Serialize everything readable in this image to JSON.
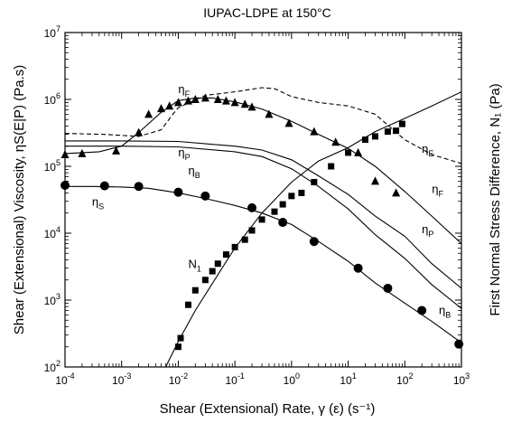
{
  "chart_data": {
    "type": "line",
    "title": "IUPAC-LDPE at 150°C",
    "xlabel": "Shear (Extensional) Rate, γ (ε) (s⁻¹)",
    "ylabel_left": "Shear (Extensional) Viscosity, ηS(E|P) (Pa.s)",
    "ylabel_right": "First Normal Stress Difference, N₁ (Pa)",
    "x_scale": "log",
    "y_scale": "log",
    "xlim": [
      0.0001,
      1000
    ],
    "ylim": [
      100,
      10000000
    ],
    "grid": false,
    "x_ticks": [
      {
        "value": 0.0001,
        "base": "10",
        "exp": "-4"
      },
      {
        "value": 0.001,
        "base": "10",
        "exp": "-3"
      },
      {
        "value": 0.01,
        "base": "10",
        "exp": "-2"
      },
      {
        "value": 0.1,
        "base": "10",
        "exp": "-1"
      },
      {
        "value": 1,
        "base": "10",
        "exp": "0"
      },
      {
        "value": 10,
        "base": "10",
        "exp": "1"
      },
      {
        "value": 100,
        "base": "10",
        "exp": "2"
      },
      {
        "value": 1000,
        "base": "10",
        "exp": "3"
      }
    ],
    "y_ticks": [
      {
        "value": 100,
        "base": "10",
        "exp": "2"
      },
      {
        "value": 1000,
        "base": "10",
        "exp": "3"
      },
      {
        "value": 10000,
        "base": "10",
        "exp": "4"
      },
      {
        "value": 100000,
        "base": "10",
        "exp": "5"
      },
      {
        "value": 1000000,
        "base": "10",
        "exp": "6"
      },
      {
        "value": 10000000,
        "base": "10",
        "exp": "7"
      }
    ],
    "series": [
      {
        "name": "ηS",
        "kind": "line",
        "dash": "solid",
        "x": [
          0.0001,
          0.0003,
          0.001,
          0.003,
          0.01,
          0.03,
          0.1,
          0.3,
          1,
          3,
          10,
          30,
          100,
          300,
          1000
        ],
        "y": [
          50000,
          50000,
          49000,
          47000,
          40000,
          33000,
          26000,
          20000,
          13500,
          7500,
          3800,
          1800,
          900,
          480,
          230
        ]
      },
      {
        "name": "ηS data",
        "kind": "markers",
        "marker": "circle",
        "x": [
          0.0001,
          0.0005,
          0.002,
          0.01,
          0.03,
          0.2,
          0.7,
          2.5,
          15,
          50,
          200,
          900
        ],
        "y": [
          52000,
          51000,
          50000,
          41000,
          36000,
          24000,
          14500,
          7500,
          3000,
          1500,
          700,
          220
        ]
      },
      {
        "name": "ηB",
        "kind": "line",
        "dash": "solid",
        "x": [
          0.0001,
          0.001,
          0.01,
          0.1,
          0.3,
          1,
          3,
          10,
          30,
          100,
          300,
          1000
        ],
        "y": [
          200000,
          200000,
          195000,
          165000,
          140000,
          92000,
          50000,
          23000,
          9500,
          4200,
          1700,
          750
        ]
      },
      {
        "name": "ηP",
        "kind": "line",
        "dash": "solid",
        "x": [
          0.0001,
          0.001,
          0.01,
          0.1,
          0.3,
          1,
          3,
          10,
          30,
          100,
          300,
          1000
        ],
        "y": [
          240000,
          240000,
          235000,
          200000,
          175000,
          125000,
          72000,
          38000,
          18000,
          9000,
          3500,
          1500
        ]
      },
      {
        "name": "ηF",
        "kind": "line",
        "dash": "solid",
        "x": [
          0.0001,
          0.0004,
          0.001,
          0.002,
          0.005,
          0.01,
          0.02,
          0.04,
          0.1,
          0.3,
          1,
          3,
          10,
          30,
          100,
          300,
          1000
        ],
        "y": [
          155000,
          165000,
          200000,
          320000,
          640000,
          960000,
          1050000,
          1050000,
          920000,
          720000,
          470000,
          300000,
          185000,
          100000,
          42000,
          18000,
          7000
        ]
      },
      {
        "name": "ηF data",
        "kind": "markers",
        "marker": "triangle",
        "x": [
          0.0001,
          0.0002,
          0.0008,
          0.002,
          0.003,
          0.005,
          0.007,
          0.01,
          0.015,
          0.02,
          0.03,
          0.05,
          0.07,
          0.1,
          0.15,
          0.2,
          0.4,
          0.9,
          2.5,
          6,
          15,
          30,
          70
        ],
        "y": [
          150000,
          155000,
          170000,
          320000,
          600000,
          730000,
          800000,
          900000,
          950000,
          1000000,
          1050000,
          1000000,
          950000,
          900000,
          850000,
          770000,
          600000,
          440000,
          330000,
          230000,
          160000,
          60000,
          40000
        ]
      },
      {
        "name": "ηE",
        "kind": "line",
        "dash": "dashed",
        "x": [
          0.0001,
          0.0005,
          0.002,
          0.005,
          0.008,
          0.01,
          0.03,
          0.1,
          0.3,
          0.5,
          1,
          3,
          10,
          30,
          100,
          300,
          1000
        ],
        "y": [
          310000,
          300000,
          280000,
          350000,
          600000,
          750000,
          1150000,
          1300000,
          1500000,
          1450000,
          1100000,
          900000,
          800000,
          600000,
          250000,
          150000,
          110000
        ]
      },
      {
        "name": "N₁",
        "kind": "line",
        "dash": "solid",
        "x": [
          0.006,
          0.01,
          0.02,
          0.05,
          0.1,
          0.3,
          1,
          3,
          10,
          30,
          100,
          300,
          1000
        ],
        "y": [
          100,
          240,
          700,
          2400,
          6000,
          20000,
          58000,
          120000,
          190000,
          330000,
          520000,
          800000,
          1300000
        ]
      },
      {
        "name": "N₁ data",
        "kind": "markers",
        "marker": "square",
        "x": [
          0.01,
          0.011,
          0.015,
          0.02,
          0.03,
          0.04,
          0.05,
          0.07,
          0.1,
          0.15,
          0.2,
          0.3,
          0.5,
          0.7,
          1,
          1.5,
          2.5,
          5,
          10,
          20,
          30,
          50,
          70,
          90
        ],
        "y": [
          200,
          270,
          850,
          1400,
          2000,
          2700,
          3500,
          4800,
          6200,
          8000,
          11000,
          16000,
          21000,
          27000,
          36000,
          40000,
          58000,
          100000,
          160000,
          250000,
          280000,
          330000,
          340000,
          430000
        ]
      }
    ],
    "annotations": [
      {
        "base": "η",
        "sub": "S"
      },
      {
        "base": "η",
        "sub": "B"
      },
      {
        "base": "η",
        "sub": "P"
      },
      {
        "base": "η",
        "sub": "F"
      },
      {
        "base": "η",
        "sub": "E"
      },
      {
        "base": "η",
        "sub": "P"
      },
      {
        "base": "η",
        "sub": "F"
      },
      {
        "base": "η",
        "sub": "B"
      },
      {
        "base": "N",
        "sub": "1"
      }
    ]
  }
}
